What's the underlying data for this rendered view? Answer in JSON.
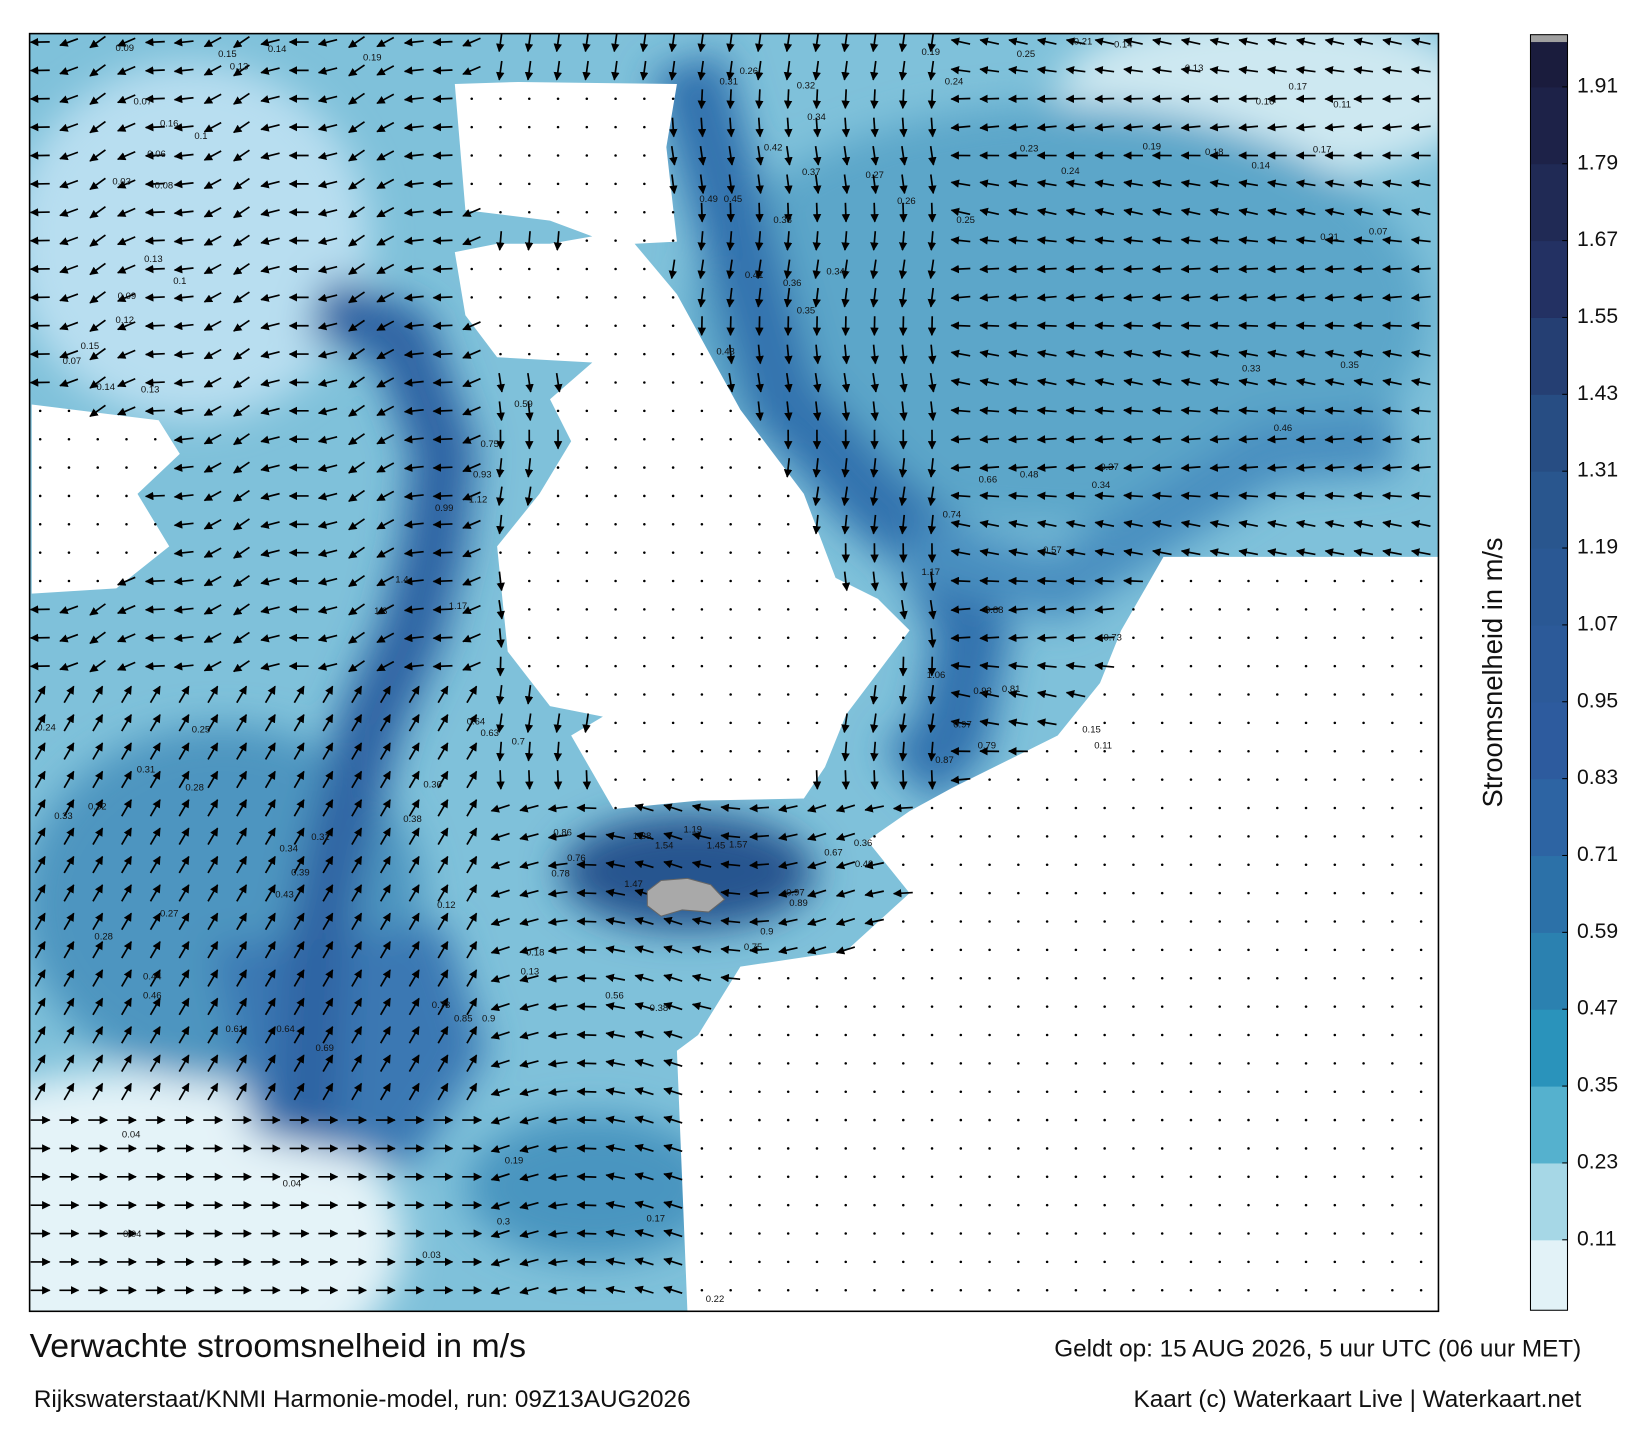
{
  "title": "Verwachte stroomsnelheid in m/s",
  "subtitle": "Rijkswaterstaat/KNMI Harmonie-model, run: 09Z13AUG2026",
  "valid_time": "Geldt op: 15 AUG 2026, 5 uur UTC (06 uur MET)",
  "credit": "Kaart (c) Waterkaart Live | Waterkaart.net",
  "colorbar": {
    "label": "Stroomsnelheid in m/s",
    "lim": [
      0,
      1.98
    ],
    "ticks": [
      0.11,
      0.23,
      0.35,
      0.47,
      0.59,
      0.71,
      0.83,
      0.95,
      1.07,
      1.19,
      1.31,
      1.43,
      1.55,
      1.67,
      1.79,
      1.91
    ]
  },
  "map_labels": [
    0.09,
    0.15,
    0.14,
    0.19,
    0.13,
    0.07,
    0.16,
    0.1,
    0.06,
    0.03,
    0.08,
    0.13,
    0.1,
    0.09,
    0.12,
    0.15,
    0.07,
    0.14,
    0.13,
    0.31,
    0.26,
    0.32,
    0.34,
    0.42,
    0.37,
    0.49,
    0.45,
    0.38,
    0.41,
    0.36,
    0.34,
    0.35,
    0.43,
    0.19,
    0.25,
    0.21,
    0.14,
    0.24,
    0.27,
    0.26,
    0.25,
    0.23,
    0.24,
    0.13,
    0.17,
    0.16,
    0.11,
    0.19,
    0.18,
    0.14,
    0.17,
    0.21,
    0.07,
    0.35,
    0.33,
    0.46,
    0.48,
    0.37,
    0.34,
    0.57,
    0.73,
    0.88,
    0.93,
    0.81,
    0.97,
    0.79,
    0.87,
    0.74,
    0.66,
    1.06,
    1.17,
    0.15,
    0.11,
    0.59,
    0.75,
    0.93,
    1.12,
    0.99,
    1.4,
    1.17,
    1.3,
    0.7,
    0.64,
    0.63,
    0.36,
    0.38,
    0.31,
    0.34,
    0.39,
    0.43,
    0.27,
    0.28,
    0.44,
    0.46,
    0.61,
    0.64,
    0.69,
    0.9,
    0.85,
    0.73,
    0.33,
    0.32,
    0.31,
    0.28,
    0.25,
    0.24,
    0.04,
    0.04,
    0.04,
    0.03,
    0.3,
    0.22,
    0.17,
    0.19,
    1.57,
    1.45,
    1.54,
    1.19,
    1.38,
    1.47,
    0.86,
    0.76,
    0.78,
    0.67,
    0.97,
    0.89,
    0.75,
    0.9,
    0.49,
    0.36,
    0.12,
    0.18,
    0.13,
    0.56,
    0.38
  ]
}
